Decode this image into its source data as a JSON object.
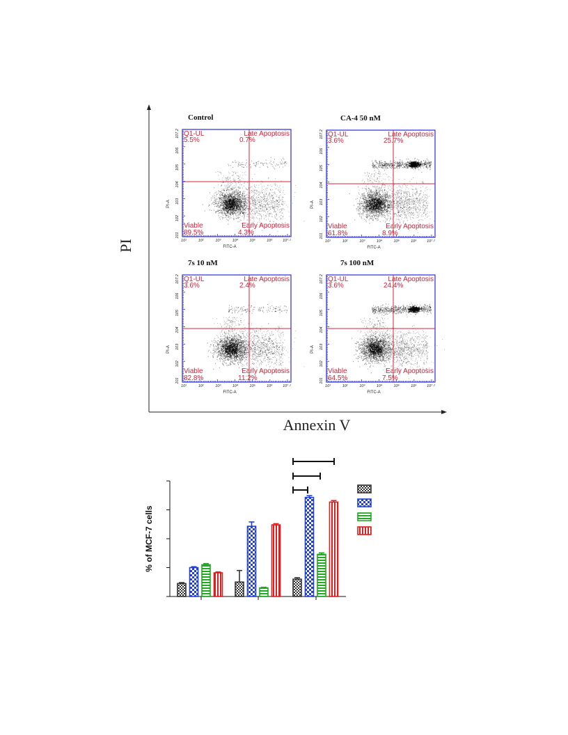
{
  "flow": {
    "y_axis_label": "PI",
    "x_axis_label": "Annexin V",
    "plot_x_label": "FITC-A",
    "plot_y_label": "PI-A",
    "x_ticks": [
      "10^1",
      "10^2",
      "10^3",
      "10^4",
      "10^5",
      "10^6",
      "10^7.2"
    ],
    "y_ticks": [
      "10^1",
      "10^2",
      "10^3",
      "10^4",
      "10^5",
      "10^6",
      "10^7.2"
    ],
    "quadrant_names": {
      "ul": "Q1-UL",
      "ur": "Late Apoptosis",
      "ll": "Viable",
      "lr": "Early Apoptosis"
    },
    "panels": [
      {
        "title": "Control",
        "ul": "5.5%",
        "ur": "0.7%",
        "ll": "89.5%",
        "lr": "4.3%"
      },
      {
        "title": "CA-4 50 nM",
        "ul": "3.6%",
        "ur": "25.7%",
        "ll": "61.8%",
        "lr": "8.9%"
      },
      {
        "title": "7s 10 nM",
        "ul": "3.6%",
        "ur": "2.4%",
        "ll": "82.8%",
        "lr": "11.2%"
      },
      {
        "title": "7s 100 nM",
        "ul": "3.6%",
        "ur": "24.4%",
        "ll": "64.5%",
        "lr": "7.5%"
      }
    ]
  },
  "chart_data": {
    "type": "bar",
    "ylabel": "% of MCF-7 cells",
    "ylim": [
      0,
      40
    ],
    "groups": 3,
    "series": [
      {
        "pattern": "checker-small",
        "color": "#333333",
        "values": [
          4.5,
          5,
          6
        ],
        "errors": [
          0.3,
          4,
          0.5
        ]
      },
      {
        "pattern": "checker-large",
        "color": "#1f3fd8",
        "values": [
          10,
          24.3,
          34.3
        ],
        "errors": [
          0.3,
          1.5,
          0.6
        ]
      },
      {
        "pattern": "horizontal-stripes",
        "color": "#1faa1f",
        "values": [
          11,
          3,
          14.6
        ],
        "errors": [
          0.4,
          0.2,
          0.5
        ]
      },
      {
        "pattern": "vertical-stripes",
        "color": "#e01c1c",
        "values": [
          8.2,
          24.8,
          32.7
        ],
        "errors": [
          0.3,
          0.4,
          0.5
        ]
      }
    ],
    "significance_brackets": 3
  }
}
